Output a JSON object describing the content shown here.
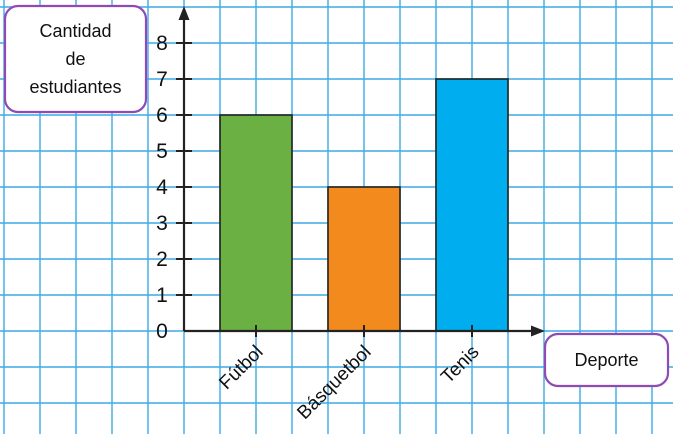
{
  "chart_data": {
    "type": "bar",
    "categories": [
      "Fútbol",
      "Básquetbol",
      "Tenis"
    ],
    "values": [
      6,
      4,
      7
    ],
    "colors": [
      "#6ab042",
      "#f28a1e",
      "#00aeef"
    ],
    "ylabel_lines": [
      "Cantidad",
      "de",
      "estudiantes"
    ],
    "xlabel": "Deporte",
    "yticks": [
      "0",
      "1",
      "2",
      "3",
      "4",
      "5",
      "6",
      "7",
      "8"
    ],
    "ylim": [
      0,
      8
    ],
    "grid": true,
    "grid_color": "#3fa9e6",
    "box_border_color": "#8e4bb5"
  }
}
